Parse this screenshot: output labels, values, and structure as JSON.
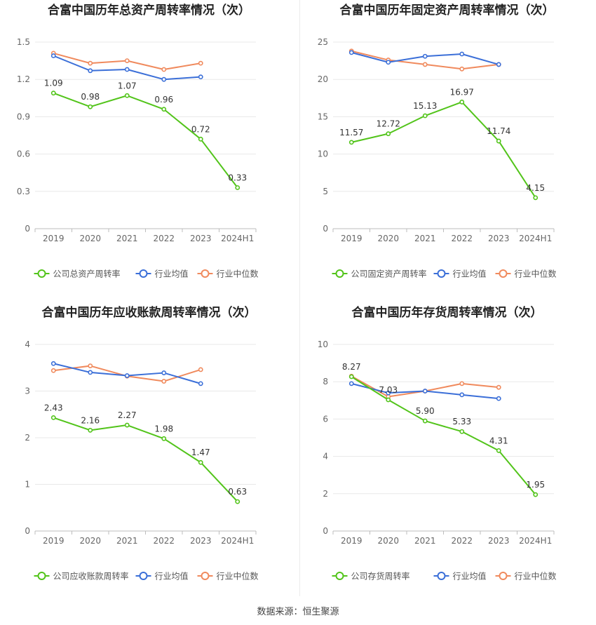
{
  "source_text": "数据来源：恒生聚源",
  "colors": {
    "company": "#52c41a",
    "avg": "#3b6fd8",
    "median": "#f08a5d",
    "grid": "#e8e8e8",
    "axis": "#bdbdbd",
    "tick": "#666666",
    "label": "#333333"
  },
  "chart_data": [
    {
      "type": "line",
      "title": "合富中国历年总资产周转率情况（次）",
      "categories": [
        "2019",
        "2020",
        "2021",
        "2022",
        "2023",
        "2024H1"
      ],
      "ylim": [
        0,
        1.5
      ],
      "yticks": [
        "0",
        "0.3",
        "0.6",
        "0.9",
        "1.2",
        "1.5"
      ],
      "ytick_values": [
        0,
        0.3,
        0.6,
        0.9,
        1.2,
        1.5
      ],
      "grid": true,
      "legend_position": "bottom",
      "series": [
        {
          "name": "公司总资产周转率",
          "key": "company",
          "values": [
            1.09,
            0.98,
            1.07,
            0.96,
            0.72,
            0.33
          ],
          "labels": [
            "1.09",
            "0.98",
            "1.07",
            "0.96",
            "0.72",
            "0.33"
          ]
        },
        {
          "name": "行业均值",
          "key": "avg",
          "values": [
            1.39,
            1.27,
            1.28,
            1.2,
            1.22,
            null
          ]
        },
        {
          "name": "行业中位数",
          "key": "median",
          "values": [
            1.41,
            1.33,
            1.35,
            1.28,
            1.33,
            null
          ]
        }
      ]
    },
    {
      "type": "line",
      "title": "合富中国历年固定资产周转率情况（次）",
      "categories": [
        "2019",
        "2020",
        "2021",
        "2022",
        "2023",
        "2024H1"
      ],
      "ylim": [
        0,
        25
      ],
      "yticks": [
        "0",
        "5",
        "10",
        "15",
        "20",
        "25"
      ],
      "ytick_values": [
        0,
        5,
        10,
        15,
        20,
        25
      ],
      "grid": true,
      "legend_position": "bottom",
      "series": [
        {
          "name": "公司固定资产周转率",
          "key": "company",
          "values": [
            11.57,
            12.72,
            15.13,
            16.97,
            11.74,
            4.15
          ],
          "labels": [
            "11.57",
            "12.72",
            "15.13",
            "16.97",
            "11.74",
            "4.15"
          ]
        },
        {
          "name": "行业均值",
          "key": "avg",
          "values": [
            23.6,
            22.3,
            23.1,
            23.4,
            22.0,
            null
          ]
        },
        {
          "name": "行业中位数",
          "key": "median",
          "values": [
            23.8,
            22.6,
            22.0,
            21.4,
            22.0,
            null
          ]
        }
      ]
    },
    {
      "type": "line",
      "title": "合富中国历年应收账款周转率情况（次）",
      "categories": [
        "2019",
        "2020",
        "2021",
        "2022",
        "2023",
        "2024H1"
      ],
      "ylim": [
        0,
        4
      ],
      "yticks": [
        "0",
        "1",
        "2",
        "3",
        "4"
      ],
      "ytick_values": [
        0,
        1,
        2,
        3,
        4
      ],
      "grid": true,
      "legend_position": "bottom",
      "series": [
        {
          "name": "公司应收账款周转率",
          "key": "company",
          "values": [
            2.43,
            2.16,
            2.27,
            1.98,
            1.47,
            0.63
          ],
          "labels": [
            "2.43",
            "2.16",
            "2.27",
            "1.98",
            "1.47",
            "0.63"
          ]
        },
        {
          "name": "行业均值",
          "key": "avg",
          "values": [
            3.59,
            3.4,
            3.33,
            3.39,
            3.16,
            null
          ]
        },
        {
          "name": "行业中位数",
          "key": "median",
          "values": [
            3.44,
            3.54,
            3.32,
            3.21,
            3.46,
            null
          ]
        }
      ]
    },
    {
      "type": "line",
      "title": "合富中国历年存货周转率情况（次）",
      "categories": [
        "2019",
        "2020",
        "2021",
        "2022",
        "2023",
        "2024H1"
      ],
      "ylim": [
        0,
        10
      ],
      "yticks": [
        "0",
        "2",
        "4",
        "6",
        "8",
        "10"
      ],
      "ytick_values": [
        0,
        2,
        4,
        6,
        8,
        10
      ],
      "grid": true,
      "legend_position": "bottom",
      "series": [
        {
          "name": "公司存货周转率",
          "key": "company",
          "values": [
            8.27,
            7.03,
            5.9,
            5.33,
            4.31,
            1.95
          ],
          "labels": [
            "8.27",
            "7.03",
            "5.90",
            "5.33",
            "4.31",
            "1.95"
          ]
        },
        {
          "name": "行业均值",
          "key": "avg",
          "values": [
            7.9,
            7.4,
            7.5,
            7.3,
            7.1,
            null
          ]
        },
        {
          "name": "行业中位数",
          "key": "median",
          "values": [
            8.3,
            7.2,
            7.5,
            7.9,
            7.7,
            null
          ]
        }
      ]
    }
  ]
}
